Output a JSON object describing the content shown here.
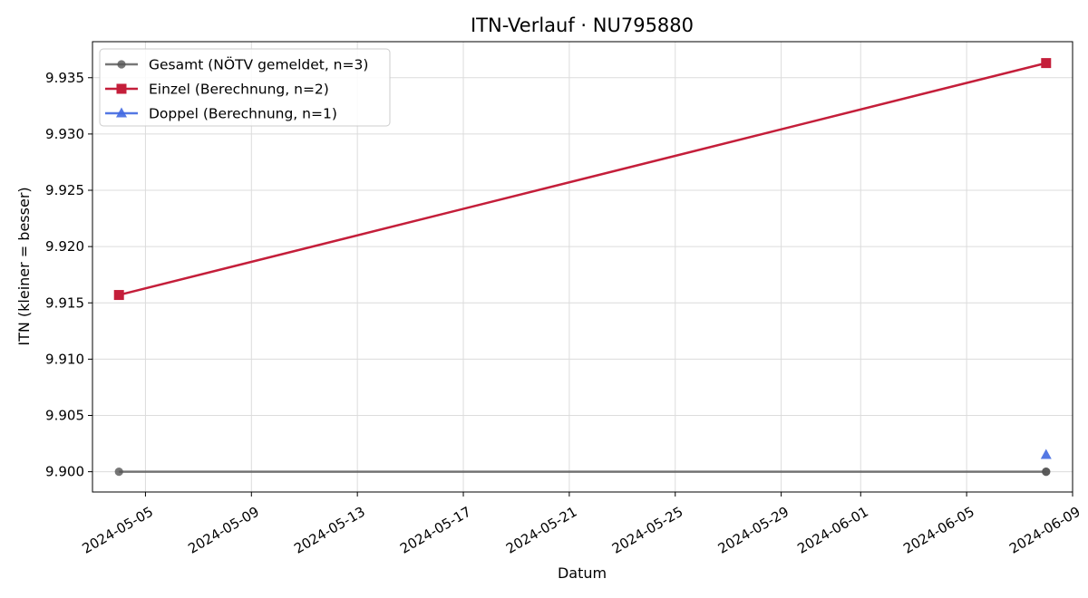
{
  "chart_data": {
    "type": "line",
    "title": "ITN-Verlauf · NU795880",
    "xlabel": "Datum",
    "ylabel": "ITN  (kleiner = besser)",
    "x_ticks": [
      "2024-05-05",
      "2024-05-09",
      "2024-05-13",
      "2024-05-17",
      "2024-05-21",
      "2024-05-25",
      "2024-05-29",
      "2024-06-01",
      "2024-06-05",
      "2024-06-09"
    ],
    "y_ticks": [
      "9.900",
      "9.905",
      "9.910",
      "9.915",
      "9.920",
      "9.925",
      "9.930",
      "9.935"
    ],
    "xlim": [
      "2024-05-03",
      "2024-06-09"
    ],
    "ylim": [
      9.8982,
      9.9382
    ],
    "grid": true,
    "legend_position": "upper-left",
    "series": [
      {
        "name": "Gesamt (NÖTV gemeldet, n=3)",
        "color": "#555555",
        "marker": "circle",
        "line": true,
        "points": [
          {
            "x": "2024-05-04",
            "y": 9.9
          },
          {
            "x": "2024-06-08",
            "y": 9.9
          },
          {
            "x": "2024-06-08",
            "y": 9.9
          }
        ]
      },
      {
        "name": "Einzel (Berechnung, n=2)",
        "color": "#c41e3a",
        "marker": "square",
        "line": true,
        "points": [
          {
            "x": "2024-05-04",
            "y": 9.9157
          },
          {
            "x": "2024-06-08",
            "y": 9.9363
          }
        ]
      },
      {
        "name": "Doppel (Berechnung, n=1)",
        "color": "#4169e1",
        "marker": "triangle",
        "line": true,
        "points": [
          {
            "x": "2024-06-08",
            "y": 9.9015
          }
        ]
      }
    ]
  }
}
